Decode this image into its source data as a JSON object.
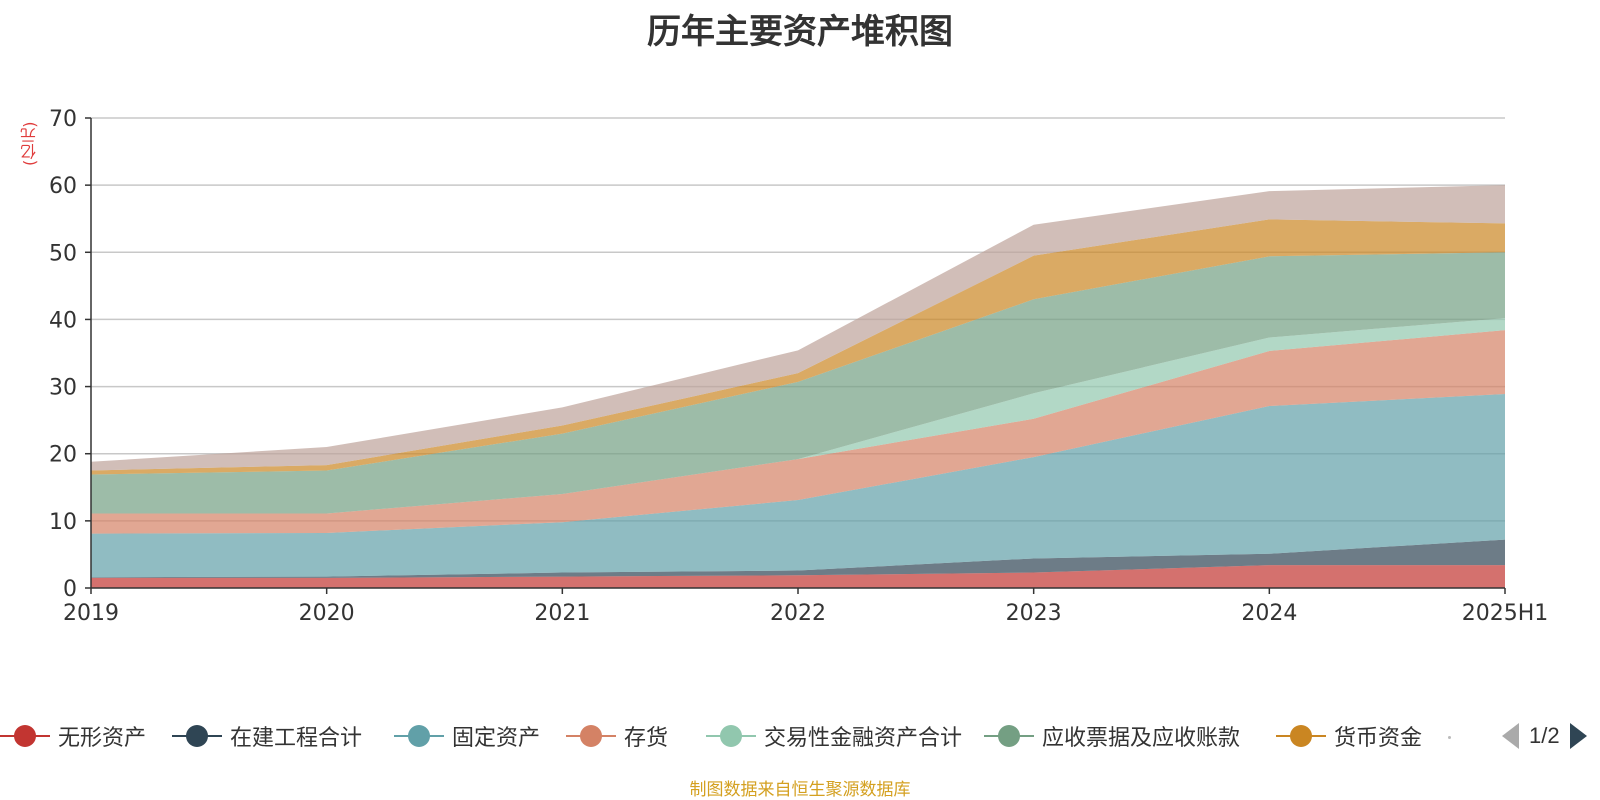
{
  "title": "历年主要资产堆积图",
  "y_unit": "(亿元)",
  "source": "制图数据来自恒生聚源数据库",
  "pager": {
    "text": "1/2"
  },
  "chart_data": {
    "type": "area",
    "stacked": true,
    "title": "历年主要资产堆积图",
    "ylabel": "(亿元)",
    "ylim": [
      0,
      70
    ],
    "yticks": [
      0,
      10,
      20,
      30,
      40,
      50,
      60,
      70
    ],
    "grid": true,
    "legend_position": "bottom",
    "categories": [
      "2019",
      "2020",
      "2021",
      "2022",
      "2023",
      "2024",
      "2025H1"
    ],
    "series": [
      {
        "name": "无形资产",
        "color": "#c23531",
        "values": [
          1.5,
          1.5,
          1.7,
          1.9,
          2.3,
          3.4,
          3.4
        ]
      },
      {
        "name": "在建工程合计",
        "color": "#2f4554",
        "values": [
          0.1,
          0.2,
          0.6,
          0.7,
          2.1,
          1.7,
          3.8
        ]
      },
      {
        "name": "固定资产",
        "color": "#61a0a8",
        "values": [
          6.5,
          6.5,
          7.5,
          10.5,
          15.1,
          22.0,
          21.7
        ]
      },
      {
        "name": "存货",
        "color": "#d48265",
        "values": [
          3.0,
          2.9,
          4.2,
          6.1,
          5.7,
          8.2,
          9.5
        ]
      },
      {
        "name": "交易性金融资产合计",
        "color": "#91c7ae",
        "values": [
          0,
          0,
          0,
          0,
          3.8,
          2.0,
          1.8
        ]
      },
      {
        "name": "应收票据及应收账款",
        "color": "#749f83",
        "values": [
          5.8,
          6.4,
          9.0,
          11.5,
          14.0,
          12.1,
          9.8
        ]
      },
      {
        "name": "货币资金",
        "color": "#ca8622",
        "values": [
          0.6,
          0.8,
          1.2,
          1.3,
          6.5,
          5.5,
          4.3
        ]
      },
      {
        "name": "",
        "color": "#bda29a",
        "values": [
          1.3,
          2.7,
          2.7,
          3.4,
          4.6,
          4.2,
          5.7
        ]
      }
    ]
  }
}
